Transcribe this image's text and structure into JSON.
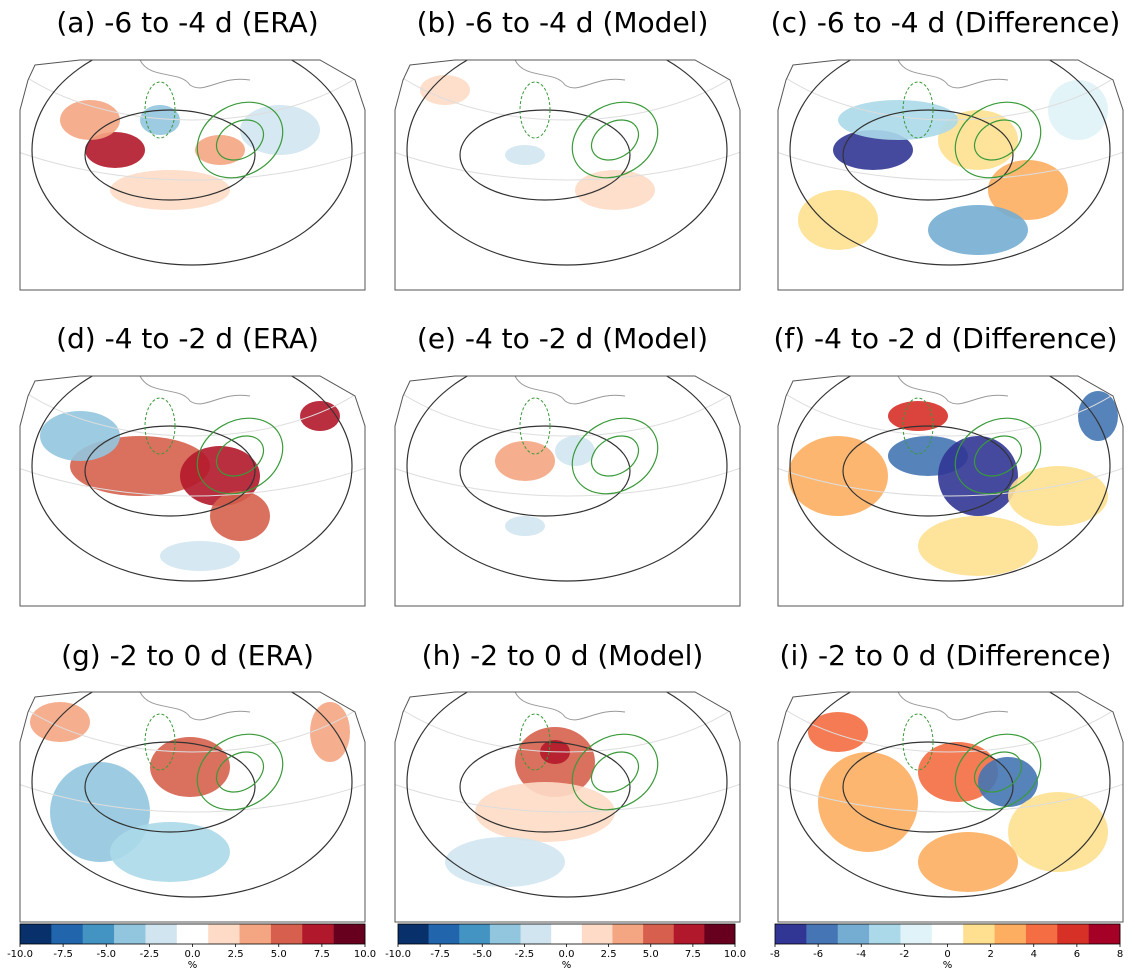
{
  "panels": [
    {
      "title": "(a) -6 to -4 d (ERA)"
    },
    {
      "title": "(b) -6 to -4 d (Model)"
    },
    {
      "title": "(c) -6 to -4 d (Difference)"
    },
    {
      "title": "(d) -4 to -2 d (ERA)"
    },
    {
      "title": "(e) -4 to -2 d (Model)"
    },
    {
      "title": "(f) -4 to -2 d (Difference)"
    },
    {
      "title": "(g) -2 to 0 d (ERA)"
    },
    {
      "title": "(h) -2 to 0 d (Model)"
    },
    {
      "title": "(i) -2 to 0 d (Difference)"
    }
  ],
  "colorbars": [
    {
      "lim": [
        -10,
        10
      ],
      "label": "%",
      "colors": [
        "#08306b",
        "#2166ac",
        "#4393c3",
        "#92c5de",
        "#d1e5f0",
        "#ffffff",
        "#fddbc7",
        "#f4a582",
        "#d6604d",
        "#b2182b",
        "#67001f"
      ],
      "ticks": [
        {
          "value": -10,
          "label": "-10.0"
        },
        {
          "value": -7.5,
          "label": "-7.5"
        },
        {
          "value": -5,
          "label": "-5.0"
        },
        {
          "value": -2.5,
          "label": "-2.5"
        },
        {
          "value": 0,
          "label": "0.0"
        },
        {
          "value": 2.5,
          "label": "2.5"
        },
        {
          "value": 5,
          "label": "5.0"
        },
        {
          "value": 7.5,
          "label": "7.5"
        },
        {
          "value": 10,
          "label": "10.0"
        }
      ]
    },
    {
      "lim": [
        -10,
        10
      ],
      "label": "%",
      "colors": [
        "#08306b",
        "#2166ac",
        "#4393c3",
        "#92c5de",
        "#d1e5f0",
        "#ffffff",
        "#fddbc7",
        "#f4a582",
        "#d6604d",
        "#b2182b",
        "#67001f"
      ],
      "ticks": [
        {
          "value": -10,
          "label": "-10.0"
        },
        {
          "value": -7.5,
          "label": "-7.5"
        },
        {
          "value": -5,
          "label": "-5.0"
        },
        {
          "value": -2.5,
          "label": "-2.5"
        },
        {
          "value": 0,
          "label": "0.0"
        },
        {
          "value": 2.5,
          "label": "2.5"
        },
        {
          "value": 5,
          "label": "5.0"
        },
        {
          "value": 7.5,
          "label": "7.5"
        },
        {
          "value": 10,
          "label": "10.0"
        }
      ]
    },
    {
      "lim": [
        -8,
        8
      ],
      "label": "%",
      "colors": [
        "#313695",
        "#4575b4",
        "#74add1",
        "#abd9e9",
        "#e0f3f8",
        "#ffffff",
        "#fee090",
        "#fdae61",
        "#f46d43",
        "#d73027",
        "#a50026"
      ],
      "ticks": [
        -8,
        -6,
        -4,
        -2,
        0,
        2,
        4,
        6,
        8
      ]
    }
  ]
}
